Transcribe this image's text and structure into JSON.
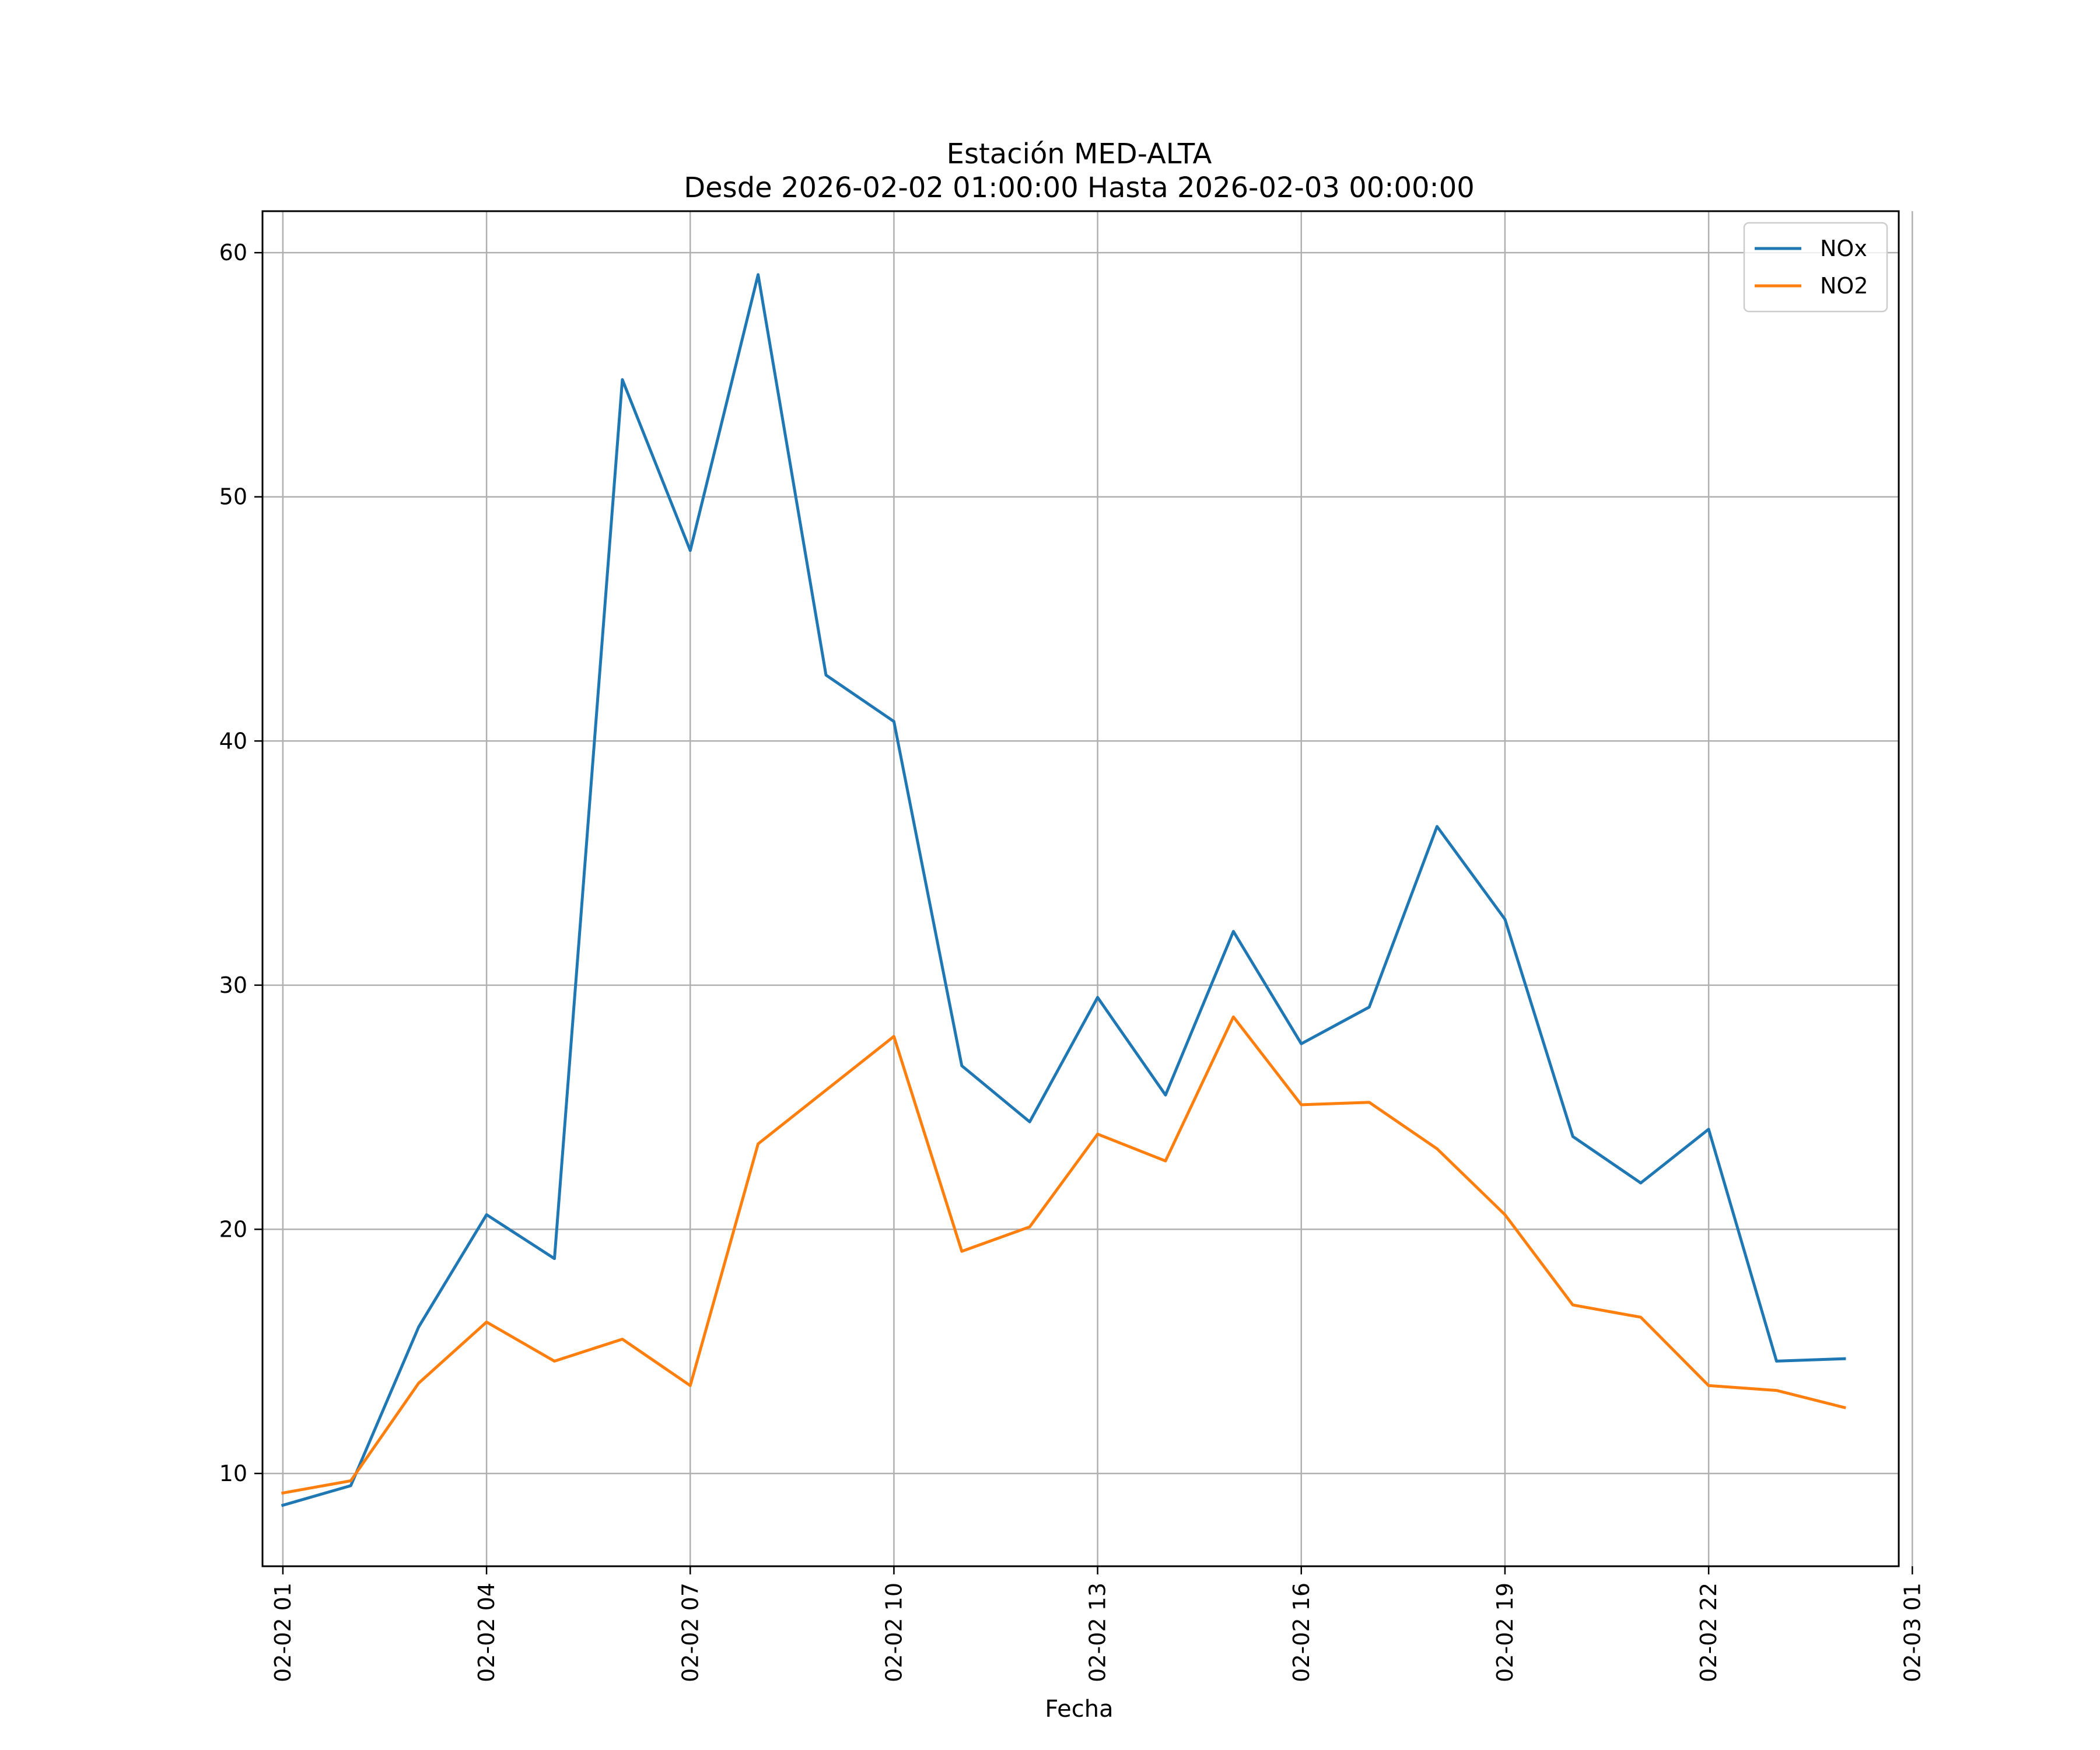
{
  "chart_data": {
    "type": "line",
    "title": "Estación MED-ALTA",
    "subtitle": "Desde 2026-02-02 01:00:00 Hasta 2026-02-03 00:00:00",
    "xlabel": "Fecha",
    "ylabel": "",
    "grid": true,
    "legend_position": "top-right",
    "xlim": [
      0.7,
      24.8
    ],
    "ylim": [
      6.2,
      61.7
    ],
    "x_ticks": [
      1,
      4,
      7,
      10,
      13,
      16,
      19,
      22,
      25
    ],
    "x_tick_labels": [
      "02-02 01",
      "02-02 04",
      "02-02 07",
      "02-02 10",
      "02-02 13",
      "02-02 16",
      "02-02 19",
      "02-02 22",
      "02-03 01"
    ],
    "y_ticks": [
      10,
      20,
      30,
      40,
      50,
      60
    ],
    "y_tick_labels": [
      "10",
      "20",
      "30",
      "40",
      "50",
      "60"
    ],
    "x": [
      1,
      2,
      3,
      4,
      5,
      6,
      7,
      8,
      9,
      10,
      11,
      12,
      13,
      14,
      15,
      16,
      17,
      18,
      19,
      20,
      21,
      22,
      23,
      24
    ],
    "series": [
      {
        "name": "NOx",
        "color": "#1f77b4",
        "values": [
          8.7,
          9.5,
          16.0,
          20.6,
          18.8,
          54.8,
          47.8,
          59.1,
          42.7,
          40.8,
          26.7,
          24.4,
          29.5,
          25.5,
          32.2,
          27.6,
          29.1,
          36.5,
          32.7,
          23.8,
          21.9,
          24.1,
          14.6,
          14.7
        ]
      },
      {
        "name": "NO2",
        "color": "#ff7f0e",
        "values": [
          9.2,
          9.7,
          13.7,
          16.2,
          14.6,
          15.5,
          13.6,
          23.5,
          25.7,
          27.9,
          19.1,
          20.1,
          23.9,
          22.8,
          28.7,
          25.1,
          25.2,
          23.3,
          20.6,
          16.9,
          16.4,
          13.6,
          13.4,
          12.7
        ]
      }
    ]
  }
}
